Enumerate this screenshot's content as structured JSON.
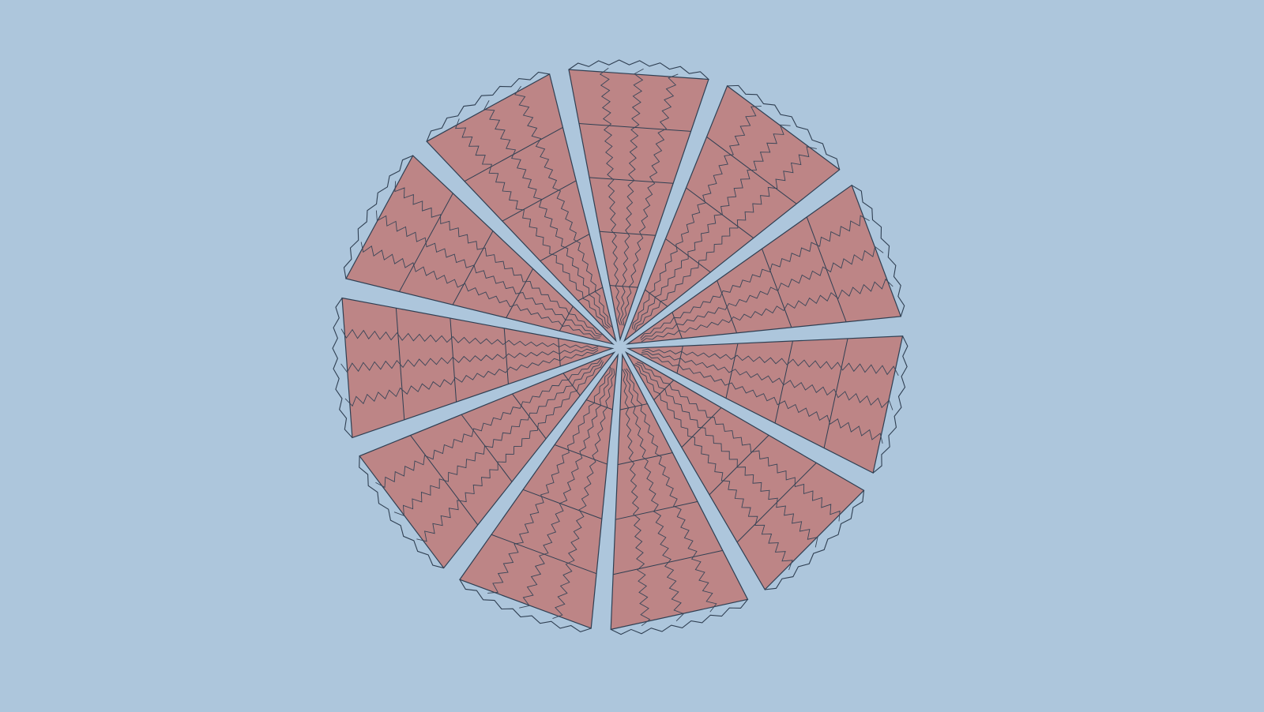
{
  "scene": {
    "kind": "radial-tiling",
    "sector_count": 11,
    "rings_per_sector": 5,
    "strips_per_cell": 3,
    "edge_style": "zigzag",
    "rotation_direction": "clockwise-pinwheel"
  },
  "colors": {
    "background": "#adc6dc",
    "tile_fill": "#bd8586",
    "edge_stroke": "#2f3f52",
    "zigzag_stroke": "#3a4658"
  }
}
